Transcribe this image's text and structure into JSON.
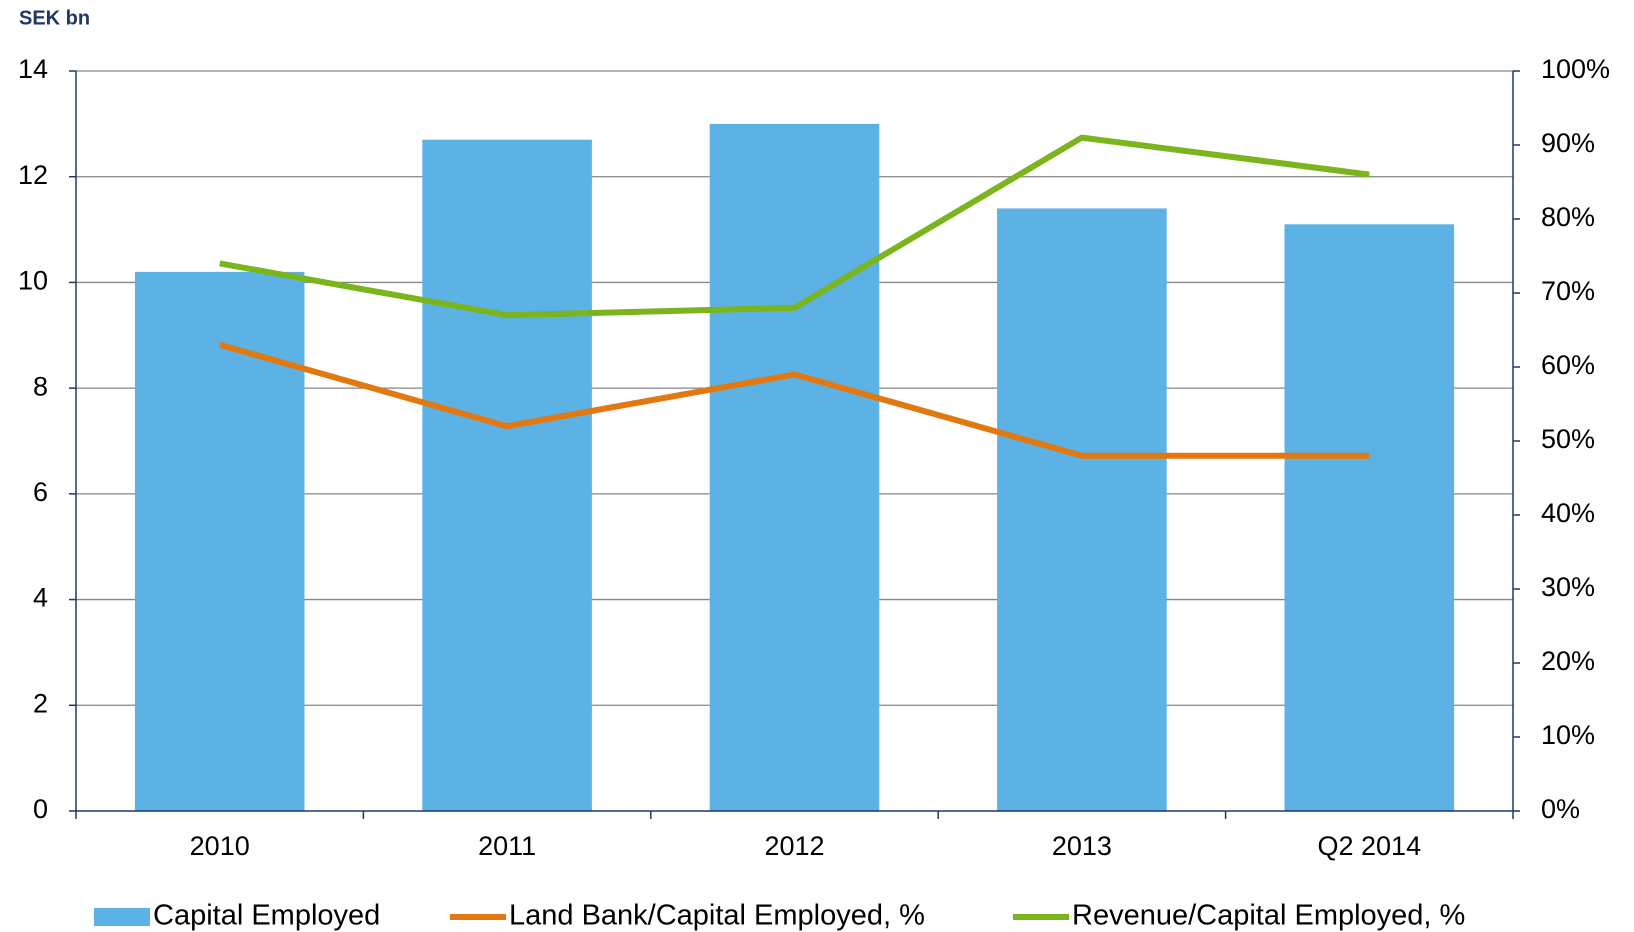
{
  "chart_data": {
    "type": "bar",
    "y_label": "SEK bn",
    "categories": [
      "2010",
      "2011",
      "2012",
      "2013",
      "Q2 2014"
    ],
    "series": [
      {
        "name": "Capital Employed",
        "type": "bar",
        "color": "#5cb2e5",
        "values": [
          10.2,
          12.7,
          13.0,
          11.4,
          11.1
        ]
      },
      {
        "name": "Land Bank/Capital Employed, %",
        "type": "line",
        "axis": "y2",
        "color": "#e2780f",
        "values": [
          63,
          52,
          59,
          48,
          48
        ]
      },
      {
        "name": "Revenue/Capital Employed, %",
        "type": "line",
        "axis": "y2",
        "color": "#7ab51d",
        "values": [
          74,
          67,
          68,
          91,
          86
        ]
      }
    ],
    "ylim": [
      0,
      14
    ],
    "yticks": [
      0,
      2,
      4,
      6,
      8,
      10,
      12,
      14
    ],
    "y2lim": [
      0,
      100
    ],
    "y2ticks": [
      {
        "value": 0,
        "label": "0%"
      },
      {
        "value": 10,
        "label": "10%"
      },
      {
        "value": 20,
        "label": "20%"
      },
      {
        "value": 30,
        "label": "30%"
      },
      {
        "value": 40,
        "label": "40%"
      },
      {
        "value": 50,
        "label": "50%"
      },
      {
        "value": 60,
        "label": "60%"
      },
      {
        "value": 70,
        "label": "70%"
      },
      {
        "value": 80,
        "label": "80%"
      },
      {
        "value": 90,
        "label": "90%"
      },
      {
        "value": 100,
        "label": "100%"
      }
    ],
    "grid": true,
    "legend": "bottom"
  }
}
